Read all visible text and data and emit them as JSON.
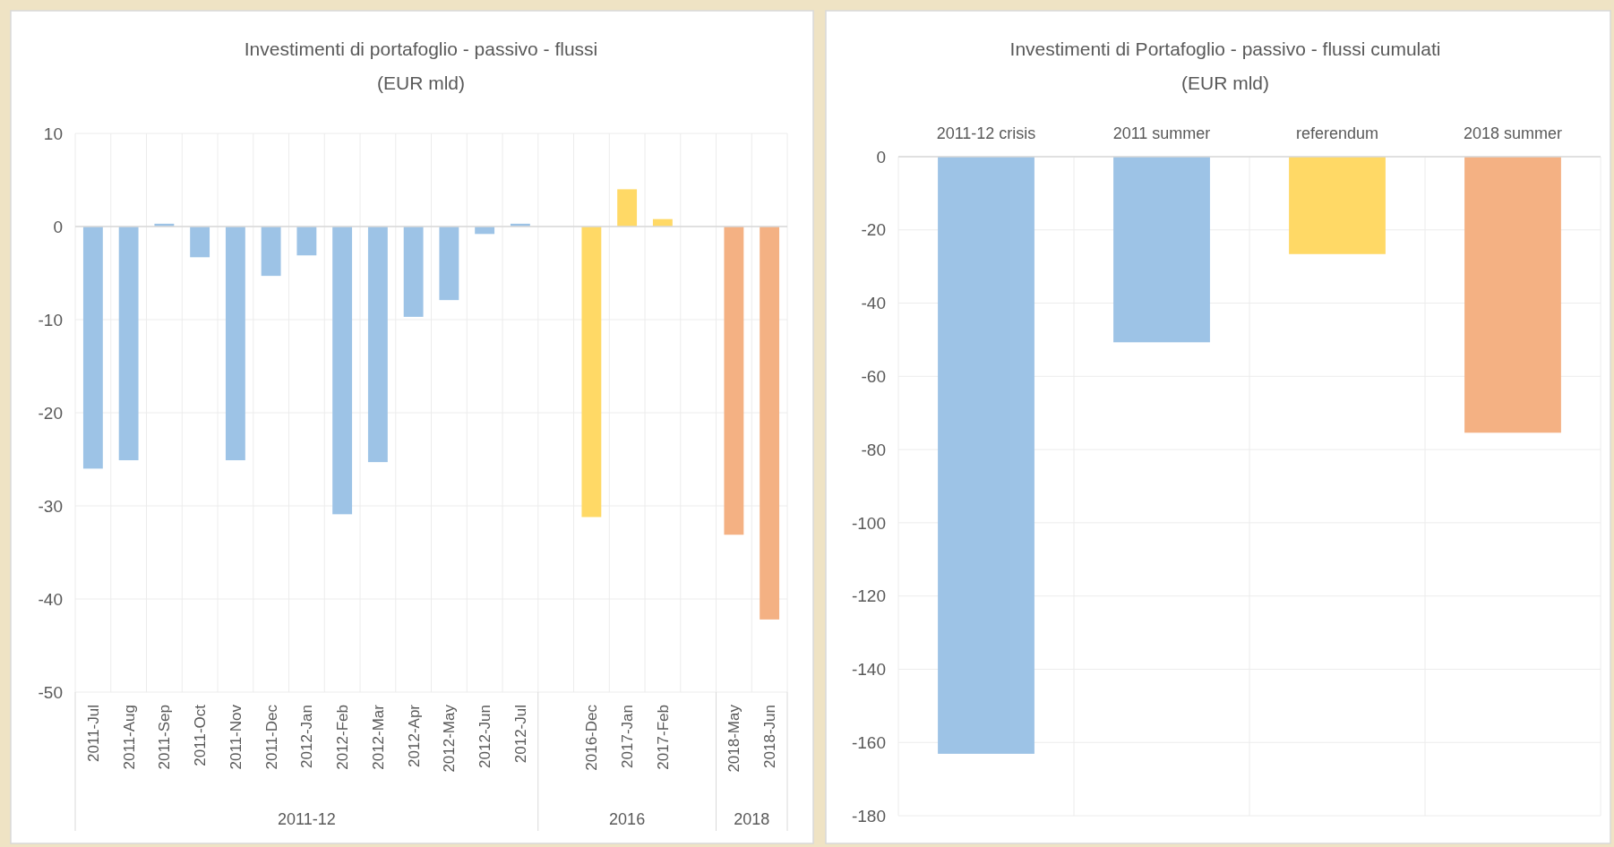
{
  "chart_data": [
    {
      "type": "bar",
      "title": "Investimenti di portafoglio - passivo - flussi",
      "subtitle": "(EUR mld)",
      "categories": [
        "2011-Jul",
        "2011-Aug",
        "2011-Sep",
        "2011-Oct",
        "2011-Nov",
        "2011-Dec",
        "2012-Jan",
        "2012-Feb",
        "2012-Mar",
        "2012-Apr",
        "2012-May",
        "2012-Jun",
        "2012-Jul",
        null,
        "2016-Dec",
        "2017-Jan",
        "2017-Feb",
        null,
        "2018-May",
        "2018-Jun"
      ],
      "values": [
        -26.0,
        -25.1,
        0.3,
        -3.3,
        -25.1,
        -5.3,
        -3.1,
        -30.9,
        -25.3,
        -9.7,
        -7.9,
        -0.8,
        0.3,
        null,
        -31.2,
        4.0,
        0.8,
        null,
        -33.1,
        -42.2
      ],
      "colors": [
        "#9dc3e6",
        "#9dc3e6",
        "#9dc3e6",
        "#9dc3e6",
        "#9dc3e6",
        "#9dc3e6",
        "#9dc3e6",
        "#9dc3e6",
        "#9dc3e6",
        "#9dc3e6",
        "#9dc3e6",
        "#9dc3e6",
        "#9dc3e6",
        null,
        "#ffd966",
        "#ffd966",
        "#ffd966",
        null,
        "#f4b183",
        "#f4b183"
      ],
      "ylim": [
        -50,
        10
      ],
      "yticks": [
        -50,
        -40,
        -30,
        -20,
        -10,
        0,
        10
      ],
      "grid": true,
      "annotations": [
        "2011-12",
        "2016",
        "2018"
      ]
    },
    {
      "type": "bar",
      "title": "Investimenti di Portafoglio - passivo - flussi cumulati",
      "subtitle": "(EUR mld)",
      "categories": [
        "2011-12 crisis",
        "2011 summer",
        "referendum",
        "2018 summer"
      ],
      "values": [
        -163.1,
        -50.7,
        -26.6,
        -75.4
      ],
      "colors": [
        "#9dc3e6",
        "#9dc3e6",
        "#ffd966",
        "#f4b183"
      ],
      "ylim": [
        -180,
        0
      ],
      "yticks": [
        -180,
        -160,
        -140,
        -120,
        -100,
        -80,
        -60,
        -40,
        -20,
        0
      ],
      "grid": true
    }
  ]
}
